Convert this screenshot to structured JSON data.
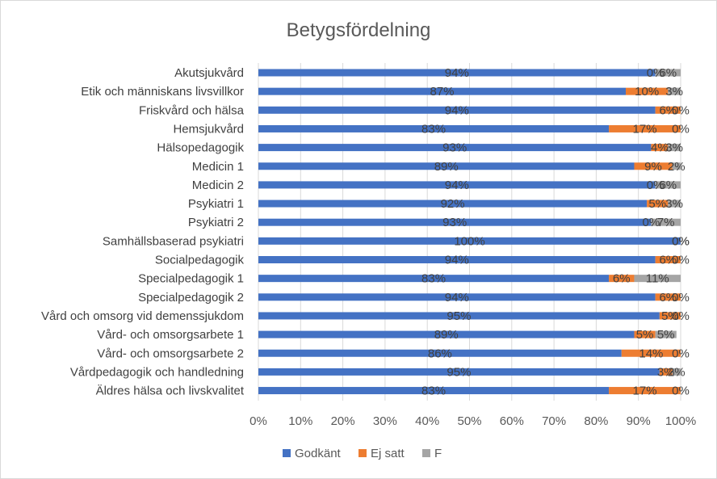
{
  "chart_data": {
    "type": "bar",
    "orientation": "horizontal",
    "stacked": "percent",
    "title": "Betygsfördelning",
    "xlabel": "",
    "ylabel": "",
    "xlim": [
      0,
      100
    ],
    "x_ticks": [
      "0%",
      "10%",
      "20%",
      "30%",
      "40%",
      "50%",
      "60%",
      "70%",
      "80%",
      "90%",
      "100%"
    ],
    "grid": true,
    "legend_position": "bottom",
    "categories": [
      "Akutsjukvård",
      "Etik och människans livsvillkor",
      "Friskvård och hälsa",
      "Hemsjukvård",
      "Hälsopedagogik",
      "Medicin 1",
      "Medicin 2",
      "Psykiatri 1",
      "Psykiatri 2",
      "Samhällsbaserad psykiatri",
      "Socialpedagogik",
      "Specialpedagogik 1",
      "Specialpedagogik 2",
      "Vård och omsorg vid demenssjukdom",
      "Vård- och omsorgsarbete 1",
      "Vård- och omsorgsarbete 2",
      "Vårdpedagogik och handledning",
      "Äldres hälsa och livskvalitet"
    ],
    "series": [
      {
        "name": "Godkänt",
        "color": "#4472C4",
        "values": [
          94,
          87,
          94,
          83,
          93,
          89,
          94,
          92,
          93,
          100,
          94,
          83,
          94,
          95,
          89,
          86,
          95,
          83
        ]
      },
      {
        "name": "Ej satt",
        "color": "#ED7D31",
        "values": [
          0,
          10,
          6,
          17,
          4,
          9,
          0,
          5,
          0,
          0,
          6,
          6,
          6,
          5,
          5,
          14,
          3,
          17
        ]
      },
      {
        "name": "F",
        "color": "#A5A5A5",
        "values": [
          6,
          3,
          0,
          0,
          3,
          2,
          6,
          3,
          7,
          0,
          0,
          11,
          0,
          0,
          5,
          0,
          2,
          0
        ]
      }
    ]
  }
}
